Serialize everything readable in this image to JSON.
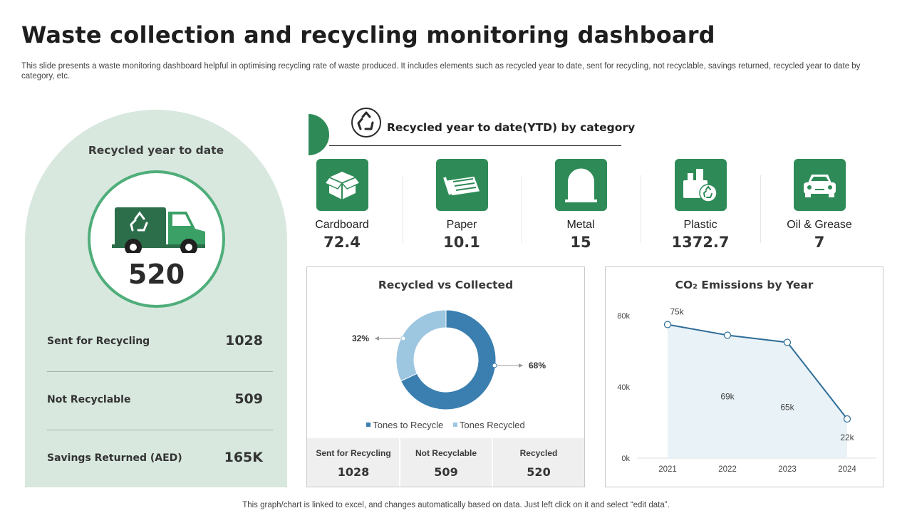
{
  "header": {
    "title": "Waste collection and recycling monitoring dashboard",
    "description": "This slide presents a waste monitoring dashboard helpful in optimising recycling rate of waste produced. It includes elements such as recycled year to date, sent for recycling, not recyclable, savings returned, recycled year to date by category, etc."
  },
  "ytd_panel": {
    "title": "Recycled year to date",
    "total": "520",
    "rows": [
      {
        "label": "Sent for Recycling",
        "value": "1028"
      },
      {
        "label": "Not Recyclable",
        "value": "509"
      },
      {
        "label": "Savings Returned (AED)",
        "value": "165K"
      }
    ]
  },
  "category_section": {
    "title": "Recycled year to date(YTD) by category",
    "items": [
      {
        "name": "Cardboard",
        "value": "72.4",
        "icon": "box-icon"
      },
      {
        "name": "Paper",
        "value": "10.1",
        "icon": "paper-icon"
      },
      {
        "name": "Metal",
        "value": "15",
        "icon": "metal-icon"
      },
      {
        "name": "Plastic",
        "value": "1372.7",
        "icon": "plastic-icon"
      },
      {
        "name": "Oil & Grease",
        "value": "7",
        "icon": "car-icon"
      }
    ]
  },
  "colors": {
    "green": "#2e8b57",
    "dark_blue": "#3a7fb0",
    "light_blue": "#9dc6e0",
    "area_fill": "#e9f2f7"
  },
  "chart_data": [
    {
      "type": "pie",
      "title": "Recycled vs Collected",
      "categories": [
        "Tones to Recycle",
        "Tones Recycled"
      ],
      "values": [
        68,
        32
      ],
      "labels": [
        "68%",
        "32%"
      ],
      "donut": true,
      "legend_position": "bottom",
      "stats": [
        {
          "label": "Sent for Recycling",
          "value": "1028"
        },
        {
          "label": "Not Recyclable",
          "value": "509"
        },
        {
          "label": "Recycled",
          "value": "520"
        }
      ]
    },
    {
      "type": "line",
      "title": "CO₂ Emissions by Year",
      "x": [
        "2021",
        "2022",
        "2023",
        "2024"
      ],
      "values": [
        75,
        69,
        65,
        22
      ],
      "data_labels": [
        "75k",
        "69k",
        "65k",
        "22k"
      ],
      "yticks": [
        "0k",
        "40k",
        "80k"
      ],
      "ylim": [
        0,
        80
      ],
      "area": true
    }
  ],
  "footer": {
    "note": "This graph/chart is linked to excel, and changes automatically based on data. Just left click on it and select “edit data”."
  }
}
